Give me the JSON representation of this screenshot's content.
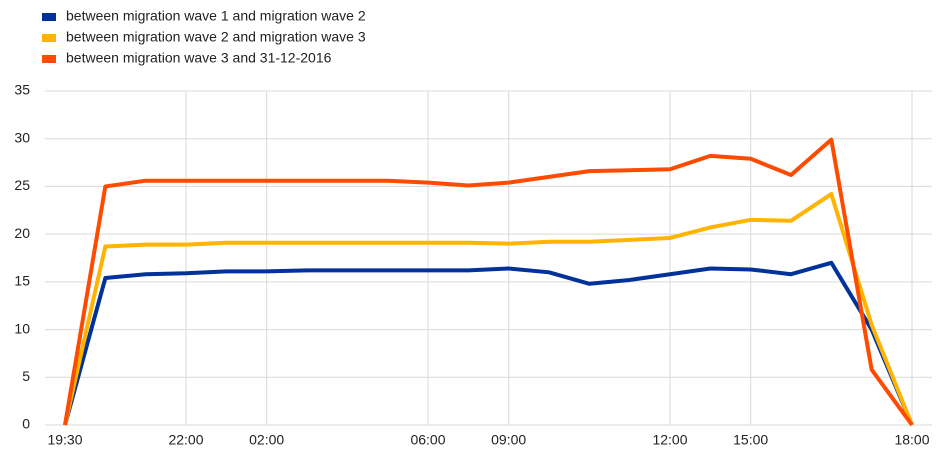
{
  "chart_data": {
    "type": "line",
    "categories": [
      "19:30",
      null,
      null,
      "22:00",
      null,
      "02:00",
      null,
      null,
      null,
      "06:00",
      null,
      "09:00",
      null,
      null,
      null,
      "12:00",
      null,
      "15:00",
      null,
      null,
      null,
      "18:00"
    ],
    "series": [
      {
        "name": "between migration wave 1 and migration wave 2",
        "color": "#003299",
        "values": [
          0,
          15.4,
          15.8,
          15.9,
          16.1,
          16.1,
          16.2,
          16.2,
          16.2,
          16.2,
          16.2,
          16.4,
          16.0,
          14.8,
          15.2,
          15.8,
          16.4,
          16.3,
          15.8,
          17.0,
          10.0,
          0
        ]
      },
      {
        "name": "between migration wave 2 and migration wave 3",
        "color": "#ffb400",
        "values": [
          0,
          18.7,
          18.9,
          18.9,
          19.1,
          19.1,
          19.1,
          19.1,
          19.1,
          19.1,
          19.1,
          19.0,
          19.2,
          19.2,
          19.4,
          19.6,
          20.7,
          21.5,
          21.4,
          24.2,
          10.5,
          0
        ]
      },
      {
        "name": "between migration wave 3 and 31-12-2016",
        "color": "#ff4b00",
        "values": [
          0,
          25.0,
          25.6,
          25.6,
          25.6,
          25.6,
          25.6,
          25.6,
          25.6,
          25.4,
          25.1,
          25.4,
          26.0,
          26.6,
          26.7,
          26.8,
          28.2,
          27.9,
          26.2,
          29.9,
          5.8,
          0
        ]
      }
    ],
    "ylim": [
      0,
      35
    ],
    "yticks": [
      0,
      5,
      10,
      15,
      20,
      25,
      30,
      35
    ],
    "grid": true,
    "legend": "top-left"
  }
}
